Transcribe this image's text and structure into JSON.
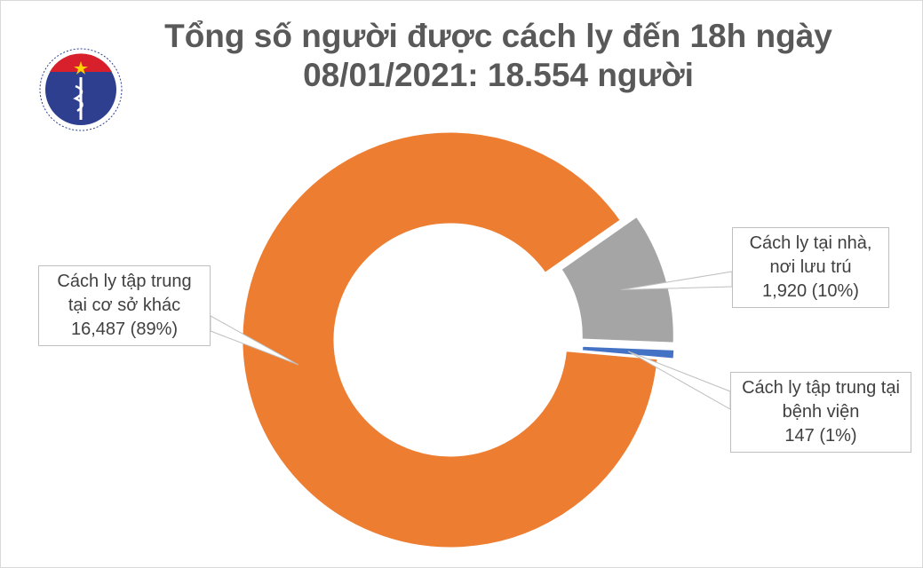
{
  "logo": {
    "top_text": "BỘ Y TẾ",
    "bottom_text": "MINISTRY OF HEALTH"
  },
  "chart_data": {
    "type": "pie",
    "variant": "donut",
    "title_line1": "Tổng số người được cách ly đến 18h ngày",
    "title_line2": "08/01/2021: 18.554 người",
    "slices": [
      {
        "label_line1": "Cách ly tại nhà,",
        "label_line2": "nơi lưu trú",
        "value": 1920,
        "value_text": "1,920 (10%)",
        "color": "#a5a5a5",
        "exploded": true
      },
      {
        "label_line1": "Cách ly tập trung tại",
        "label_line2": "bệnh viện",
        "value": 147,
        "value_text": "147 (1%)",
        "color": "#4472c4",
        "exploded": true
      },
      {
        "label_line1": "Cách ly tập trung",
        "label_line2": "tại cơ sở khác",
        "value": 16487,
        "value_text": "16,487 (89%)",
        "color": "#ed7d31",
        "exploded": false
      }
    ],
    "legend": "none"
  }
}
